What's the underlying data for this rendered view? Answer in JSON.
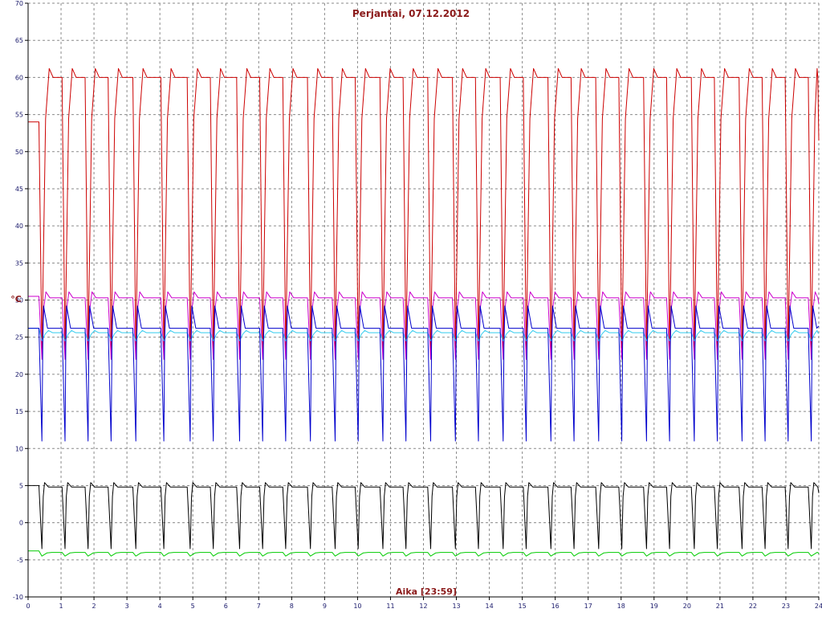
{
  "chart_data": {
    "type": "line",
    "title": "Perjantai, 07.12.2012",
    "xlabel": "Aika [23:59]",
    "ylabel": "°C",
    "xlim": [
      0,
      24
    ],
    "ylim": [
      -10,
      70
    ],
    "x_ticks": [
      0,
      1,
      2,
      3,
      4,
      5,
      6,
      7,
      8,
      9,
      10,
      11,
      12,
      13,
      14,
      15,
      16,
      17,
      18,
      19,
      20,
      21,
      22,
      23,
      24
    ],
    "y_ticks": [
      -10,
      -5,
      0,
      5,
      10,
      15,
      20,
      25,
      30,
      35,
      40,
      45,
      50,
      55,
      60,
      65,
      70
    ],
    "grid": true,
    "cycle_starts": [
      0.35,
      1.05,
      1.75,
      2.45,
      3.2,
      4.05,
      4.85,
      5.55,
      6.35,
      7.05,
      7.75,
      8.5,
      9.25,
      9.95,
      10.7,
      11.4,
      12.15,
      12.9,
      13.6,
      14.35,
      15.05,
      15.8,
      16.5,
      17.25,
      17.95,
      18.7,
      19.4,
      20.15,
      20.85,
      21.6,
      22.3,
      23.0,
      23.7
    ],
    "series": [
      {
        "color": "#cc0000",
        "low": 23,
        "high": 60,
        "overshoot": 1.2,
        "rise": 0.22,
        "first": 54,
        "last": 51.5
      },
      {
        "color": "#cc00cc",
        "low": 22,
        "high": 30.3,
        "overshoot": 0.8,
        "rise": 0.12,
        "first": 30.5,
        "last": 29.5
      },
      {
        "color": "#33ccee",
        "low": 24.5,
        "high": 25.6,
        "overshoot": 0.3,
        "rise": 0.2,
        "first": 26.2,
        "last": 25.5
      },
      {
        "color": "#0000cc",
        "low": 11,
        "high": 26.2,
        "overshoot": 3.0,
        "rise": 0.05,
        "first": 26.2,
        "last": 26.5
      },
      {
        "color": "#000000",
        "low": -3.5,
        "high": 4.8,
        "overshoot": 0.6,
        "rise": 0.08,
        "first": 5,
        "last": 4
      },
      {
        "color": "#00cc00",
        "low": -4.5,
        "high": -4.0,
        "overshoot": 0.0,
        "rise": 0.3,
        "first": -3.8,
        "last": -4.2
      }
    ]
  }
}
